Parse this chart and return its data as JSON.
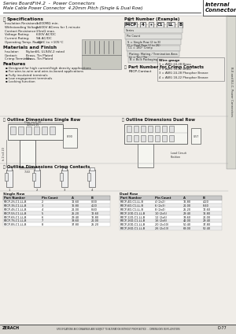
{
  "title_line1": "Series BoardFit4.2  -  Power Connectors",
  "title_line2": "Male Cable Power Connector  4.20mm Pitch (Single & Dual Row)",
  "right_title_line1": "Internal",
  "right_title_line2": "Connectors",
  "bg_color": "#f0ede8",
  "specs_title": "Specifications",
  "specs": [
    [
      "Insulation Resistance:",
      "1,000MΩ min."
    ],
    [
      "Withstanding Voltage:",
      "1,500V ACrms for 1 minute"
    ],
    [
      "Contact Resistance:",
      "15mΩ max."
    ],
    [
      "Voltage Rating:",
      "600V AC/DC"
    ],
    [
      "Current Rating:",
      "9A AC/DC"
    ],
    [
      "Operating Temp. Range:",
      "-40°C to +105°C"
    ]
  ],
  "materials_title": "Materials and Finish",
  "materials": [
    [
      "Insulator:",
      "Nylon66, UL94V-2 rated"
    ],
    [
      "Contact:",
      "Brass, Tin Plated"
    ],
    [
      "Crimp Terminals:",
      "Brass, Tin Plated"
    ]
  ],
  "features_title": "Features",
  "features": [
    "Designed for high current/high density applications",
    "For wire-to-wire and wire-to-board applications",
    "Fully insulated terminals",
    "Low engagement terminals",
    "Locking function"
  ],
  "part_number_title": "Part Number (Example)",
  "part_number_fields": [
    "P4CP",
    "4",
    "*",
    "C1",
    "LL",
    "B"
  ],
  "part_number_labels": [
    "Series",
    "Pin Count",
    "S = Single Row (2 to 8)\nD = Dual Row (2 to 26)",
    "C1 = 180° Crimp",
    "Plating: Mating / Termination Area\nLL = Tin / Tin",
    "B = Bulk Packaging"
  ],
  "crimp_contact_title": "Part Number for Crimp Contacts",
  "crimp_contact_sub": "P4CP-Contact",
  "wire_gauge_title": "Wire gauge",
  "wire_gauge_items": [
    "1 = AWG 24-28 Brass",
    "2 = AWG 18-22 Brass",
    "3 = AWG 24-28 Phosphor Bronze",
    "4 = AWG 18-22 Phosphor Bronze"
  ],
  "outline_single_title": "Outline Dimensions Single Row",
  "outline_dual_title": "Outline Dimensions Dual Row",
  "outline_crimp_title": "Outline Dimensions Crimp Contacts",
  "dual_row_label": "Dual Row",
  "dual_table_header": [
    "Part Number",
    "Pin Count",
    "A",
    "B"
  ],
  "dual_table_data": [
    [
      "P4CP-4D-C1-LL-B",
      "4 (2x2)",
      "16.80",
      "4.20"
    ],
    [
      "P4CP-6D-C1-LL-B",
      "6 (2x3)",
      "21.00",
      "8.40"
    ],
    [
      "P4CP-8D-C1-LL-B",
      "8 (2x4)",
      "25.20",
      "12.60"
    ],
    [
      "P4CP-10D-C1-LL-B",
      "10 (2x5)",
      "29.40",
      "16.80"
    ],
    [
      "P4CP-12D-C1-LL-B",
      "12 (2x6)",
      "33.60",
      "21.00"
    ],
    [
      "P4CP-16D-C1-LL-B",
      "16 (2x8)",
      "42.00",
      "29.40"
    ],
    [
      "P4CP-20D-C1-LL-B",
      "20 (2x10)",
      "50.40",
      "37.80"
    ],
    [
      "P4CP-26D-C1-LL-B",
      "26 (2x13)",
      "63.00",
      "50.40"
    ]
  ],
  "single_row_label": "Single Row",
  "single_table_header": [
    "Part Number",
    "Pin Count",
    "A",
    "B"
  ],
  "single_table_data": [
    [
      "P4CP-2S-C1-LL-B",
      "2",
      "12.60",
      "0.00"
    ],
    [
      "P4CP-3S-C1-LL-B",
      "3",
      "16.80",
      "4.20"
    ],
    [
      "P4CP-4S-C1-LL-B",
      "4",
      "21.00",
      "8.40"
    ],
    [
      "P4CP-5S-C1-LL-B",
      "5",
      "25.20",
      "12.60"
    ],
    [
      "P4CP-6S-C1-LL-B",
      "6",
      "29.40",
      "16.80"
    ],
    [
      "P4CP-7S-C1-LL-B",
      "7",
      "33.60",
      "21.00"
    ],
    [
      "P4CP-8S-C1-LL-B",
      "8",
      "37.80",
      "25.20"
    ]
  ],
  "footer_left": "ZERACH",
  "footer_text": "SPECIFICATIONS AND DRAWINGS ARE SUBJECT TO ALTERATION WITHOUT PRIOR NOTICE  -  DIMENSIONS IN MILLIMETERS",
  "footer_page": "D-77",
  "side_label": "B-II and B-I-C, Power Connectors"
}
